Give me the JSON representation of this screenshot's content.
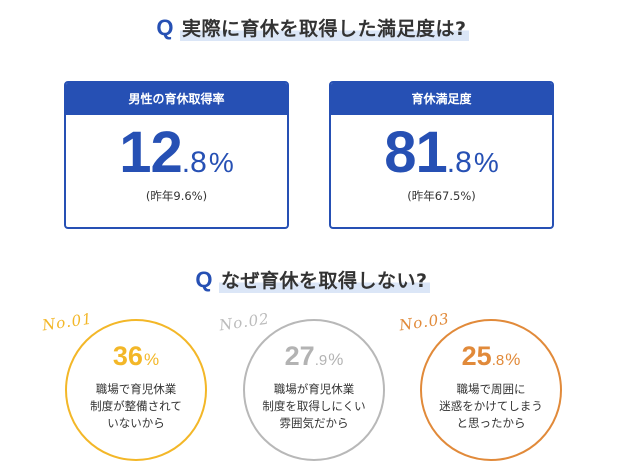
{
  "q1": {
    "mark": "Q",
    "text": "実際に育休を取得した満足度は?"
  },
  "cards": [
    {
      "header": "男性の育休取得率",
      "int": "12",
      "dec": ".8",
      "pct": "%",
      "sub": "(昨年9.6%)"
    },
    {
      "header": "育休満足度",
      "int": "81",
      "dec": ".8",
      "pct": "%",
      "sub": "(昨年67.5%)"
    }
  ],
  "q2": {
    "mark": "Q",
    "text": "なぜ育休を取得しない?"
  },
  "reasons": [
    {
      "no": "No.01",
      "int": "36",
      "dec": "",
      "pct": "%",
      "lines": [
        "職場で育児休業",
        "制度が整備されて",
        "いないから"
      ],
      "color": "#f3b728"
    },
    {
      "no": "No.02",
      "int": "27",
      "dec": ".9",
      "pct": "%",
      "lines": [
        "職場が育児休業",
        "制度を取得しにくい",
        "雰囲気だから"
      ],
      "color": "#b3b3b3"
    },
    {
      "no": "No.03",
      "int": "25",
      "dec": ".8",
      "pct": "%",
      "lines": [
        "職場で周囲に",
        "迷惑をかけてしまう",
        "と思ったから"
      ],
      "color": "#e18a3a"
    }
  ],
  "colors": {
    "accent": "#2650b4",
    "highlight": "#dbe6f7"
  }
}
